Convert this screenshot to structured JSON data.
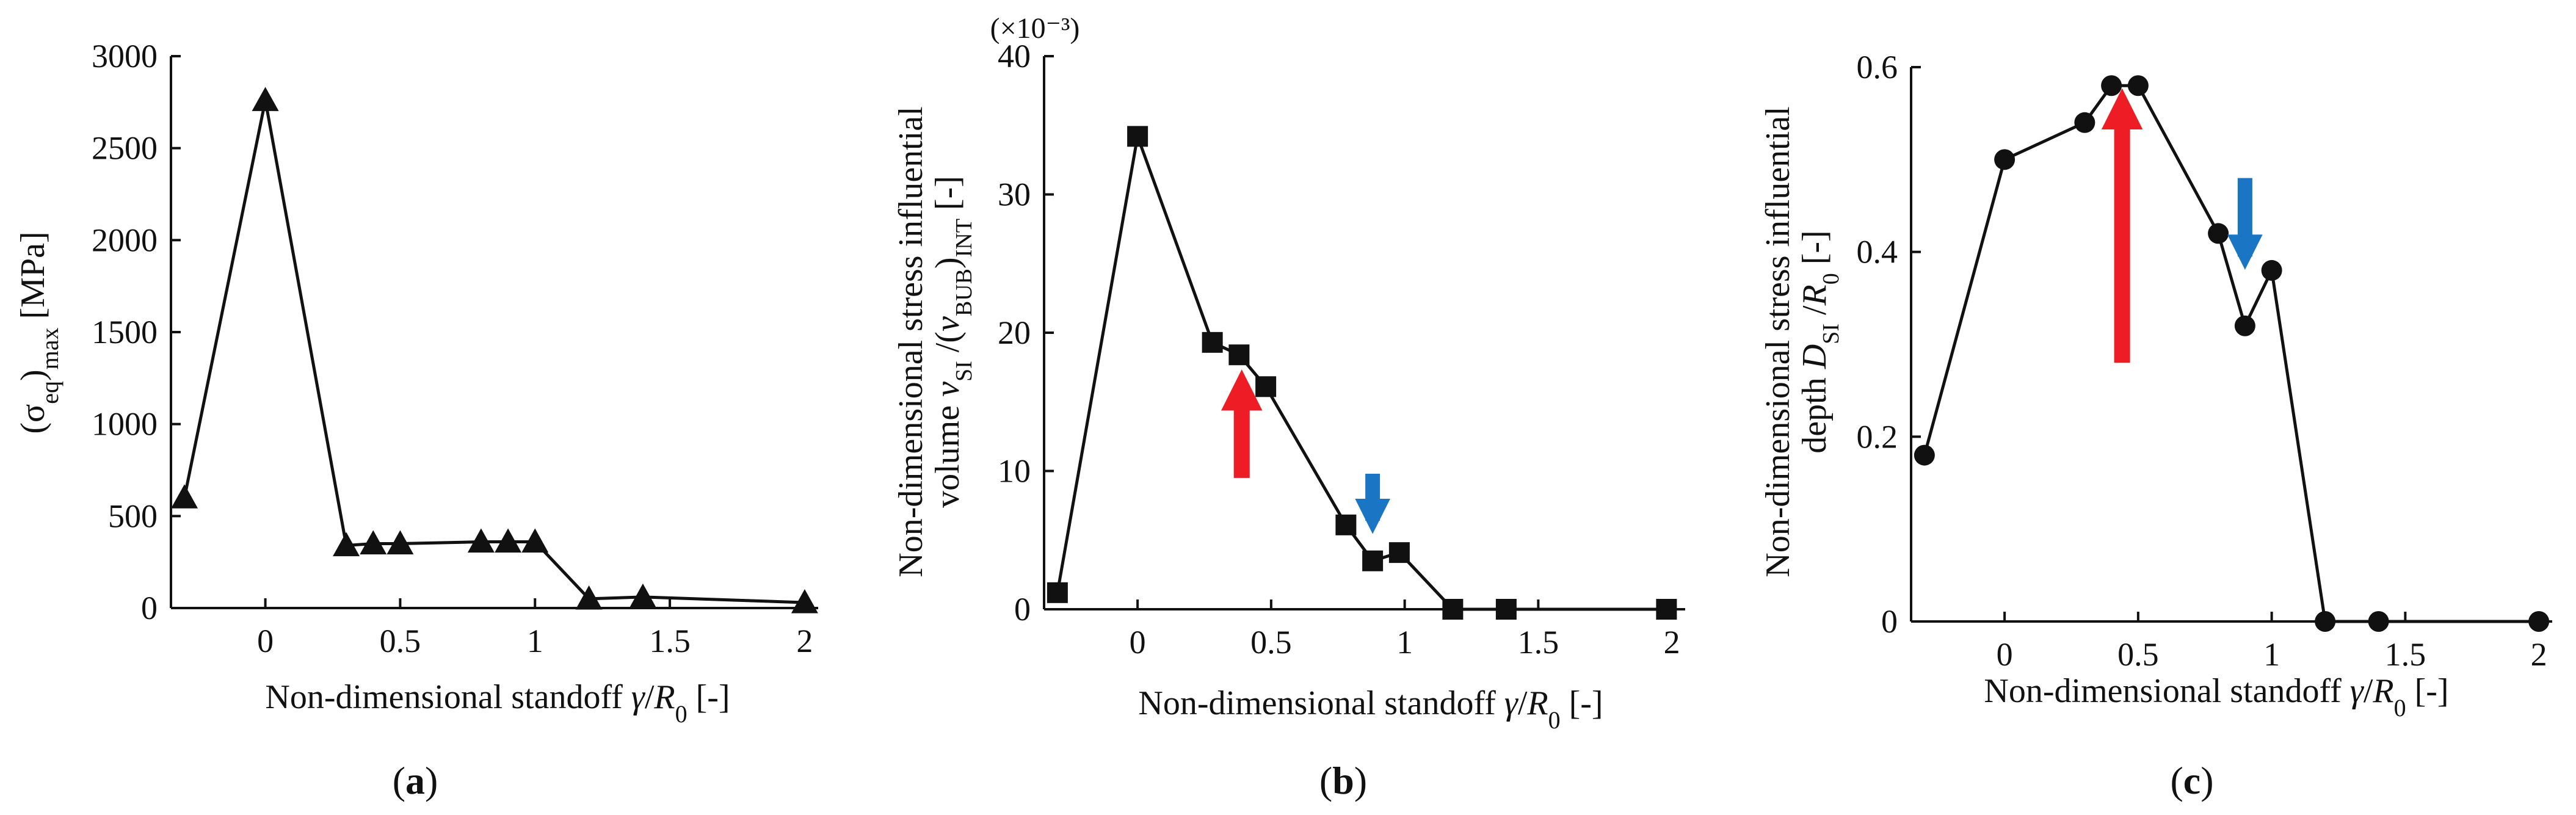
{
  "colors": {
    "ink": "#111111",
    "red_arrow": "#ee1c25",
    "blue_arrow": "#1a75c4"
  },
  "chart_data": [
    {
      "type": "line",
      "panel_label": "a",
      "marker": "triangle",
      "xlabel": {
        "text": "Non-dimensional standoff ",
        "math_main": "γ",
        "math_slash": "/",
        "math_sym": "R",
        "math_sub": "0",
        "unit": " [-]"
      },
      "ylabel": {
        "open": "(σ",
        "sub1": "eq",
        "close": ")",
        "sub2": "max",
        "unit": " [MPa]"
      },
      "xlim": [
        -0.35,
        2.05
      ],
      "ylim": [
        0,
        3000
      ],
      "xticks": [
        0,
        0.5,
        1,
        1.5,
        2
      ],
      "xtick_labels": [
        "0",
        "0.5",
        "1",
        "1.5",
        "2"
      ],
      "yticks": [
        0,
        500,
        1000,
        1500,
        2000,
        2500,
        3000
      ],
      "ytick_labels": [
        "0",
        "500",
        "1000",
        "1500",
        "2000",
        "2500",
        "3000"
      ],
      "x": [
        -0.3,
        0,
        0.3,
        0.4,
        0.5,
        0.8,
        0.9,
        1.0,
        1.2,
        1.4,
        2.0
      ],
      "y": [
        600,
        2760,
        340,
        350,
        350,
        360,
        360,
        360,
        50,
        60,
        30
      ],
      "arrows": []
    },
    {
      "type": "line",
      "panel_label": "b",
      "marker": "square",
      "multiplier": "(×10⁻³)",
      "xlabel": {
        "text": "Non-dimensional standoff ",
        "math_main": "γ",
        "math_slash": "/",
        "math_sym": "R",
        "math_sub": "0",
        "unit": " [-]"
      },
      "ylabel": {
        "line1": "Non-dimensional stress influential",
        "prefix": "volume ",
        "v1": "v",
        "v1sub": "SI",
        "slash": " /(",
        "v2": "v",
        "v2sub": "BUB",
        "close": ")",
        "closesub": "INT",
        "unit": " [-]"
      },
      "xlim": [
        -0.35,
        2.05
      ],
      "ylim": [
        0,
        40
      ],
      "xticks": [
        0,
        0.5,
        1,
        1.5,
        2
      ],
      "xtick_labels": [
        "0",
        "0.5",
        "1",
        "1.5",
        "2"
      ],
      "yticks": [
        0,
        10,
        20,
        30,
        40
      ],
      "ytick_labels": [
        "0",
        "10",
        "20",
        "30",
        "40"
      ],
      "x": [
        -0.3,
        0,
        0.28,
        0.38,
        0.48,
        0.78,
        0.88,
        0.98,
        1.18,
        1.38,
        1.98
      ],
      "y": [
        1.2,
        34.2,
        19.3,
        18.4,
        16.1,
        6.1,
        3.5,
        4.1,
        0,
        0,
        0
      ],
      "arrows": [
        {
          "color": "red",
          "direction": "up",
          "x": 0.39,
          "y_from": 9.5,
          "y_to": 16.2
        },
        {
          "color": "blue",
          "direction": "down",
          "x": 0.88,
          "y_from": 9.8,
          "y_to": 6.4
        }
      ]
    },
    {
      "type": "line",
      "panel_label": "c",
      "marker": "circle",
      "xlabel": {
        "text": "Non-dimensional standoff ",
        "math_main": "γ",
        "math_slash": "/",
        "math_sym": "R",
        "math_sub": "0",
        "unit": " [-]"
      },
      "ylabel": {
        "line1": "Non-dimensional stress influential",
        "prefix": "depth ",
        "d": "D",
        "dsub": "SI",
        "slash": " /",
        "r": "R",
        "rsub": "0",
        "unit": " [-]"
      },
      "xlim": [
        -0.35,
        2.05
      ],
      "ylim": [
        0,
        0.6
      ],
      "xticks": [
        0,
        0.5,
        1,
        1.5,
        2
      ],
      "xtick_labels": [
        "0",
        "0.5",
        "1",
        "1.5",
        "2"
      ],
      "yticks": [
        0,
        0.2,
        0.4,
        0.6
      ],
      "ytick_labels": [
        "0",
        "0.2",
        "0.4",
        "0.6"
      ],
      "x": [
        -0.3,
        0,
        0.3,
        0.4,
        0.5,
        0.8,
        0.9,
        1.0,
        1.2,
        1.4,
        2.0
      ],
      "y": [
        0.18,
        0.5,
        0.54,
        0.58,
        0.58,
        0.42,
        0.32,
        0.38,
        0,
        0,
        0
      ],
      "arrows": [
        {
          "color": "red",
          "direction": "up",
          "x": 0.44,
          "y_from": 0.28,
          "y_to": 0.56
        },
        {
          "color": "blue",
          "direction": "down",
          "x": 0.9,
          "y_from": 0.48,
          "y_to": 0.395
        }
      ]
    }
  ]
}
